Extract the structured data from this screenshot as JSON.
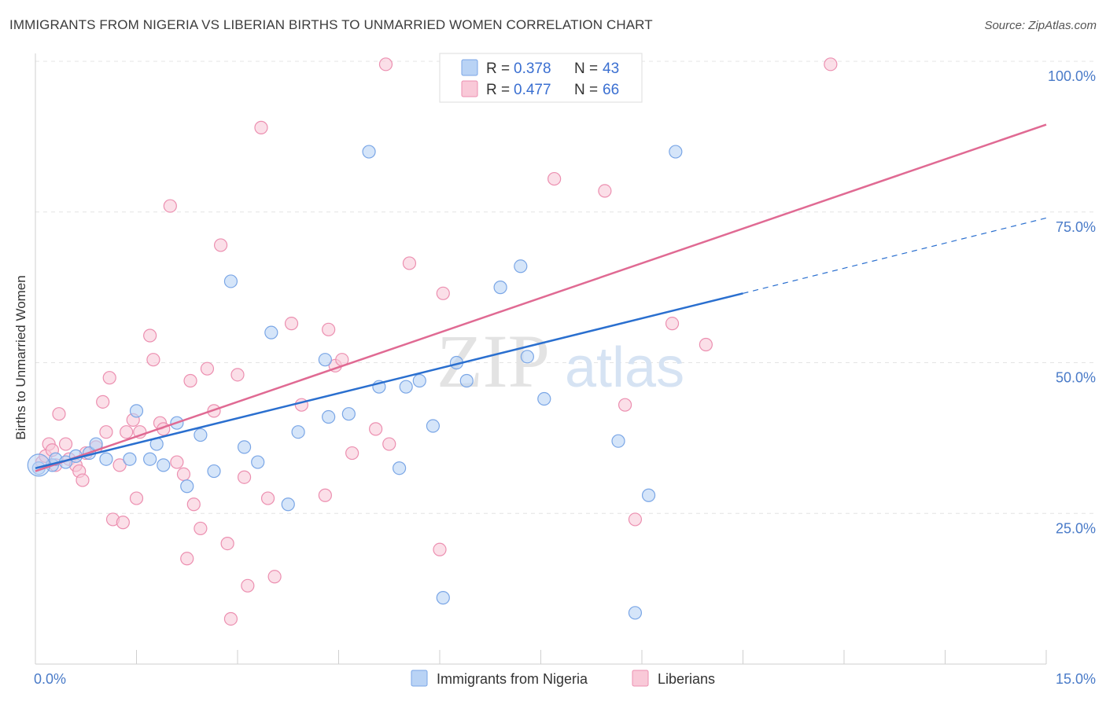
{
  "header": {
    "title": "IMMIGRANTS FROM NIGERIA VS LIBERIAN BIRTHS TO UNMARRIED WOMEN CORRELATION CHART",
    "source": "Source: ZipAtlas.com"
  },
  "watermark": {
    "zip": "ZIP",
    "atlas": "atlas"
  },
  "legend": {
    "r_label": "R =",
    "n_label": "N =",
    "rows": [
      {
        "r": "0.378",
        "n": "43"
      },
      {
        "r": "0.477",
        "n": "66"
      }
    ]
  },
  "colors": {
    "nigeria_fill": "#b9d3f5",
    "nigeria_stroke": "#7aa6e6",
    "nigeria_line": "#2a6fcf",
    "liberian_fill": "#f9c9d8",
    "liberian_stroke": "#ec8fb0",
    "liberian_line": "#e06a93"
  },
  "chart_data": {
    "type": "scatter",
    "title": "IMMIGRANTS FROM NIGERIA VS LIBERIAN BIRTHS TO UNMARRIED WOMEN CORRELATION CHART",
    "xlabel": "",
    "ylabel": "Births to Unmarried Women",
    "xlim": [
      0,
      15
    ],
    "ylim": [
      0,
      100
    ],
    "x_tick_labels": [
      "0.0%",
      "15.0%"
    ],
    "y_ticks": [
      25,
      50,
      75,
      100
    ],
    "y_tick_labels": [
      "25.0%",
      "50.0%",
      "75.0%",
      "100.0%"
    ],
    "grid": true,
    "legend_position": "top-center",
    "series": [
      {
        "name": "Immigrants from Nigeria",
        "r": 0.378,
        "n": 43,
        "trend": {
          "x0": 0.0,
          "y0": 32.5,
          "x1": 10.5,
          "y1": 61.5,
          "dash_x1": 15.0,
          "dash_y1": 74
        },
        "points": [
          [
            0.05,
            32.5
          ],
          [
            0.25,
            33.0
          ],
          [
            0.3,
            34.0
          ],
          [
            0.45,
            33.5
          ],
          [
            0.6,
            34.5
          ],
          [
            0.8,
            35.0
          ],
          [
            0.9,
            36.5
          ],
          [
            1.05,
            34.0
          ],
          [
            1.4,
            34.0
          ],
          [
            1.5,
            42.0
          ],
          [
            1.7,
            34.0
          ],
          [
            1.8,
            36.5
          ],
          [
            1.9,
            33.0
          ],
          [
            2.1,
            40.0
          ],
          [
            2.25,
            29.5
          ],
          [
            2.45,
            38.0
          ],
          [
            2.65,
            32.0
          ],
          [
            2.9,
            63.5
          ],
          [
            3.1,
            36.0
          ],
          [
            3.3,
            33.5
          ],
          [
            3.5,
            55.0
          ],
          [
            3.75,
            26.5
          ],
          [
            3.9,
            38.5
          ],
          [
            4.3,
            50.5
          ],
          [
            4.35,
            41.0
          ],
          [
            4.65,
            41.5
          ],
          [
            4.95,
            85.0
          ],
          [
            5.1,
            46.0
          ],
          [
            5.4,
            32.5
          ],
          [
            5.5,
            46.0
          ],
          [
            5.7,
            47.0
          ],
          [
            5.9,
            39.5
          ],
          [
            6.05,
            11.0
          ],
          [
            6.25,
            50.0
          ],
          [
            6.4,
            47.0
          ],
          [
            6.9,
            62.5
          ],
          [
            7.2,
            66.0
          ],
          [
            7.3,
            51.0
          ],
          [
            7.55,
            44.0
          ],
          [
            8.65,
            37.0
          ],
          [
            8.9,
            8.5
          ],
          [
            9.1,
            28.0
          ],
          [
            9.5,
            85.0
          ]
        ]
      },
      {
        "name": "Liberians",
        "r": 0.477,
        "n": 66,
        "trend": {
          "x0": 0.0,
          "y0": 32.0,
          "x1": 15.0,
          "y1": 89.5
        },
        "points": [
          [
            0.1,
            33.5
          ],
          [
            0.15,
            34.5
          ],
          [
            0.2,
            36.5
          ],
          [
            0.3,
            33.0
          ],
          [
            0.35,
            41.5
          ],
          [
            0.45,
            36.5
          ],
          [
            0.5,
            34.0
          ],
          [
            0.6,
            33.0
          ],
          [
            0.65,
            32.0
          ],
          [
            0.7,
            30.5
          ],
          [
            0.75,
            35.0
          ],
          [
            0.9,
            36.0
          ],
          [
            1.0,
            43.5
          ],
          [
            1.05,
            38.5
          ],
          [
            1.1,
            47.5
          ],
          [
            1.15,
            24.0
          ],
          [
            1.25,
            33.0
          ],
          [
            1.3,
            23.5
          ],
          [
            1.35,
            38.5
          ],
          [
            1.45,
            40.5
          ],
          [
            1.5,
            27.5
          ],
          [
            1.55,
            38.5
          ],
          [
            1.7,
            54.5
          ],
          [
            1.75,
            50.5
          ],
          [
            1.85,
            40.0
          ],
          [
            1.9,
            39.0
          ],
          [
            2.0,
            76.0
          ],
          [
            2.1,
            33.5
          ],
          [
            2.2,
            31.5
          ],
          [
            2.25,
            17.5
          ],
          [
            2.3,
            47.0
          ],
          [
            2.35,
            26.5
          ],
          [
            2.45,
            22.5
          ],
          [
            2.55,
            49.0
          ],
          [
            2.65,
            42.0
          ],
          [
            2.75,
            69.5
          ],
          [
            2.85,
            20.0
          ],
          [
            2.9,
            7.5
          ],
          [
            3.0,
            48.0
          ],
          [
            3.1,
            31.0
          ],
          [
            3.15,
            13.0
          ],
          [
            3.35,
            89.0
          ],
          [
            3.45,
            27.5
          ],
          [
            3.55,
            14.5
          ],
          [
            3.8,
            56.5
          ],
          [
            3.95,
            43.0
          ],
          [
            4.3,
            28.0
          ],
          [
            4.35,
            55.5
          ],
          [
            4.45,
            49.5
          ],
          [
            4.55,
            50.5
          ],
          [
            4.7,
            35.0
          ],
          [
            5.05,
            39.0
          ],
          [
            5.2,
            99.5
          ],
          [
            5.25,
            36.5
          ],
          [
            5.55,
            66.5
          ],
          [
            6.0,
            19.0
          ],
          [
            6.05,
            61.5
          ],
          [
            7.7,
            80.5
          ],
          [
            7.85,
            99.5
          ],
          [
            8.45,
            78.5
          ],
          [
            8.75,
            43.0
          ],
          [
            8.9,
            24.0
          ],
          [
            9.45,
            56.5
          ],
          [
            9.95,
            53.0
          ],
          [
            11.8,
            99.5
          ],
          [
            0.25,
            35.5
          ]
        ]
      }
    ]
  },
  "bottom_legend": {
    "items": [
      "Immigrants from Nigeria",
      "Liberians"
    ]
  }
}
